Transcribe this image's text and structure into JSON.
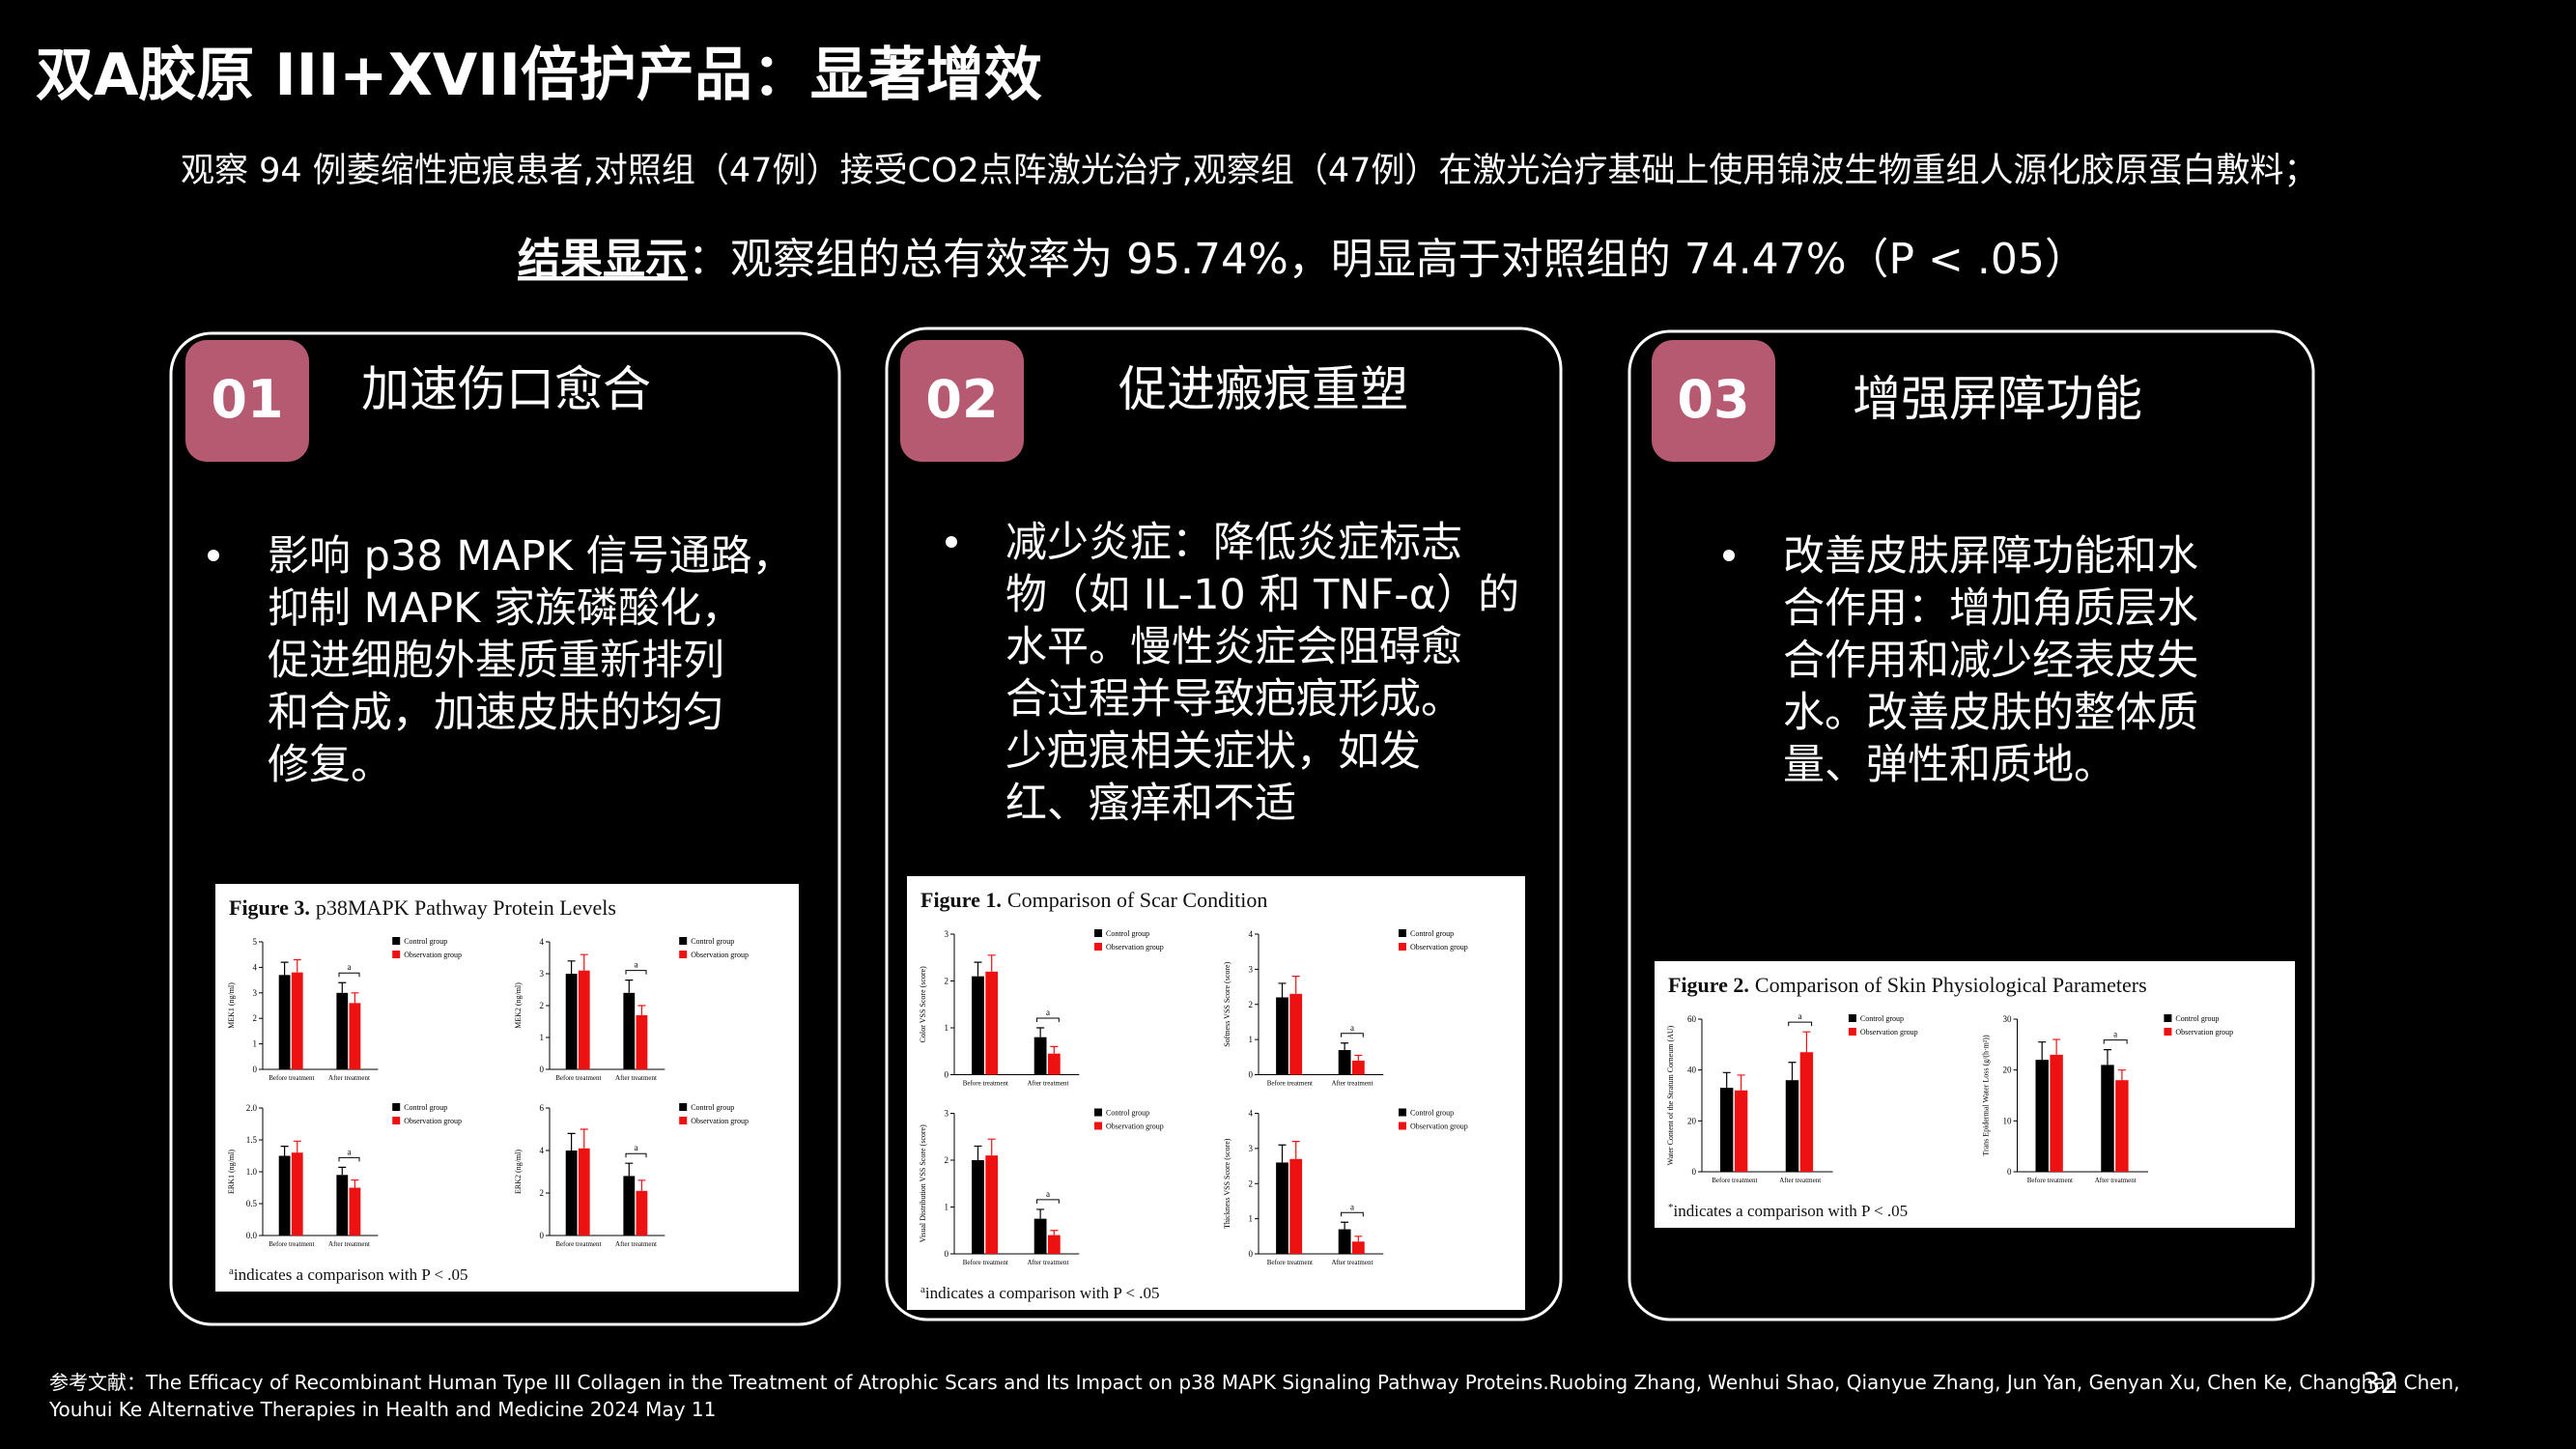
{
  "header": {
    "title": "双A胶原 III+XVII倍护产品：显著增效",
    "intro": "观察 94 例萎缩性疤痕患者,对照组（47例）接受CO2点阵激光治疗,观察组（47例）在激光治疗基础上使用锦波生物重组人源化胶原蛋白敷料；",
    "result_label": "结果显示",
    "result_text": "：观察组的总有效率为 95.74%，明显高于对照组的 74.47%（P < .05）"
  },
  "cards": [
    {
      "number": "01",
      "title": "加速伤口愈合",
      "lines": [
        "影响 p38 MAPK 信号通路，",
        "抑制 MAPK 家族磷酸化，",
        "促进细胞外基质重新排列",
        "和合成，加速皮肤的均匀",
        "修复。"
      ],
      "figure": {
        "label": "Figure 3.",
        "title": "p38MAPK Pathway Protein Levels",
        "categories": [
          "Before treatment",
          "After treatment"
        ],
        "series": [
          {
            "name": "Control group",
            "color": "#000000"
          },
          {
            "name": "Observation group",
            "color": "#ee1111"
          }
        ],
        "panels": [
          {
            "ylabel": "MEK1 (ng/ml)",
            "ylim": [
              0,
              5
            ],
            "yticks": [
              0,
              1,
              2,
              3,
              4,
              5
            ],
            "values": [
              [
                3.7,
                3.0
              ],
              [
                3.8,
                2.6
              ]
            ],
            "errors": [
              [
                0.5,
                0.4
              ],
              [
                0.5,
                0.4
              ]
            ],
            "annotation": "a"
          },
          {
            "ylabel": "MEK2 (ng/ml)",
            "ylim": [
              0,
              4
            ],
            "yticks": [
              0,
              1,
              2,
              3,
              4
            ],
            "values": [
              [
                3.0,
                2.4
              ],
              [
                3.1,
                1.7
              ]
            ],
            "errors": [
              [
                0.4,
                0.4
              ],
              [
                0.5,
                0.3
              ]
            ],
            "annotation": "a"
          },
          {
            "ylabel": "ERK1 (ng/ml)",
            "ylim": [
              0,
              2
            ],
            "yticks": [
              {
                "value": 0,
                "label": "0.0"
              },
              {
                "value": 0.5,
                "label": "0.5"
              },
              {
                "value": 1,
                "label": "1.0"
              },
              {
                "value": 1.5,
                "label": "1.5"
              },
              {
                "value": 2,
                "label": "2.0"
              }
            ],
            "values": [
              [
                1.25,
                0.95
              ],
              [
                1.3,
                0.75
              ]
            ],
            "errors": [
              [
                0.15,
                0.12
              ],
              [
                0.18,
                0.12
              ]
            ],
            "annotation": "a"
          },
          {
            "ylabel": "ERK2 (ng/ml)",
            "ylim": [
              0,
              6
            ],
            "yticks": [
              0,
              2,
              4,
              6
            ],
            "values": [
              [
                4.0,
                2.8
              ],
              [
                4.1,
                2.1
              ]
            ],
            "errors": [
              [
                0.8,
                0.6
              ],
              [
                0.9,
                0.5
              ]
            ],
            "annotation": "a"
          }
        ],
        "footnote_mark": "a",
        "footnote": "indicates a comparison with P < .05"
      }
    },
    {
      "number": "02",
      "title": "促进瘢痕重塑",
      "lines": [
        "减少炎症：降低炎症标志",
        "物（如 IL-10 和 TNF-α）的",
        "水平。慢性炎症会阻碍愈",
        "合过程并导致疤痕形成。",
        "少疤痕相关症状，如发",
        "红、瘙痒和不适"
      ],
      "figure": {
        "label": "Figure 1.",
        "title": "Comparison of Scar Condition",
        "categories": [
          "Before treatment",
          "After treatment"
        ],
        "series": [
          {
            "name": "Control group",
            "color": "#000000"
          },
          {
            "name": "Observation group",
            "color": "#ee1111"
          }
        ],
        "panels": [
          {
            "ylabel": "Color VSS Score (score)",
            "ylim": [
              0,
              3
            ],
            "yticks": [
              0,
              1,
              2,
              3
            ],
            "values": [
              [
                2.1,
                0.8
              ],
              [
                2.2,
                0.45
              ]
            ],
            "errors": [
              [
                0.3,
                0.2
              ],
              [
                0.35,
                0.15
              ]
            ],
            "annotation": "a"
          },
          {
            "ylabel": "Softness VSS Score (score)",
            "ylim": [
              0,
              4
            ],
            "yticks": [
              0,
              1,
              2,
              3,
              4
            ],
            "values": [
              [
                2.2,
                0.7
              ],
              [
                2.3,
                0.4
              ]
            ],
            "errors": [
              [
                0.4,
                0.2
              ],
              [
                0.5,
                0.15
              ]
            ],
            "annotation": "a"
          },
          {
            "ylabel": "Visual Distribution VSS Score (score)",
            "ylim": [
              0,
              3
            ],
            "yticks": [
              0,
              1,
              2,
              3
            ],
            "values": [
              [
                2.0,
                0.75
              ],
              [
                2.1,
                0.4
              ]
            ],
            "errors": [
              [
                0.3,
                0.2
              ],
              [
                0.35,
                0.1
              ]
            ],
            "annotation": "a"
          },
          {
            "ylabel": "Thickness VSS Score (score)",
            "ylim": [
              0,
              4
            ],
            "yticks": [
              0,
              1,
              2,
              3,
              4
            ],
            "values": [
              [
                2.6,
                0.7
              ],
              [
                2.7,
                0.35
              ]
            ],
            "errors": [
              [
                0.5,
                0.2
              ],
              [
                0.5,
                0.15
              ]
            ],
            "annotation": "a"
          }
        ],
        "footnote_mark": "a",
        "footnote": "indicates a comparison with P < .05"
      }
    },
    {
      "number": "03",
      "title": "增强屏障功能",
      "lines": [
        "改善皮肤屏障功能和水",
        "合作用：增加角质层水",
        "合作用和减少经表皮失",
        "水。改善皮肤的整体质",
        "量、弹性和质地。"
      ],
      "figure": {
        "label": "Figure 2.",
        "title": "Comparison of Skin Physiological Parameters",
        "categories": [
          "Before treatment",
          "After treatment"
        ],
        "series": [
          {
            "name": "Control group",
            "color": "#000000"
          },
          {
            "name": "Observation group",
            "color": "#ee1111"
          }
        ],
        "panels": [
          {
            "ylabel": "Water Content of the Stratum Corneum (AU)",
            "ylim": [
              0,
              60
            ],
            "yticks": [
              0,
              20,
              40,
              60
            ],
            "values": [
              [
                33,
                36
              ],
              [
                32,
                47
              ]
            ],
            "errors": [
              [
                6,
                7
              ],
              [
                6,
                8
              ]
            ],
            "annotation": "a"
          },
          {
            "ylabel": "Trans Epidermal Water Loss (g/(h·m²))",
            "ylim": [
              0,
              30
            ],
            "yticks": [
              0,
              10,
              20,
              30
            ],
            "values": [
              [
                22,
                21
              ],
              [
                23,
                18
              ]
            ],
            "errors": [
              [
                3.5,
                3
              ],
              [
                3,
                2
              ]
            ],
            "annotation": "a"
          }
        ],
        "footnote_mark": "*",
        "footnote": "indicates a comparison with P < .05"
      }
    }
  ],
  "reference": [
    "参考文献：The Efficacy of Recombinant Human Type III Collagen in the Treatment of Atrophic Scars and Its Impact on p38 MAPK Signaling Pathway Proteins.Ruobing Zhang, Wenhui Shao, Qianyue Zhang, Jun Yan, Genyan Xu, Chen Ke, Changhan Chen,",
    "Youhui Ke Alternative Therapies in Health and Medicine 2024 May 11"
  ],
  "page_number": "32"
}
